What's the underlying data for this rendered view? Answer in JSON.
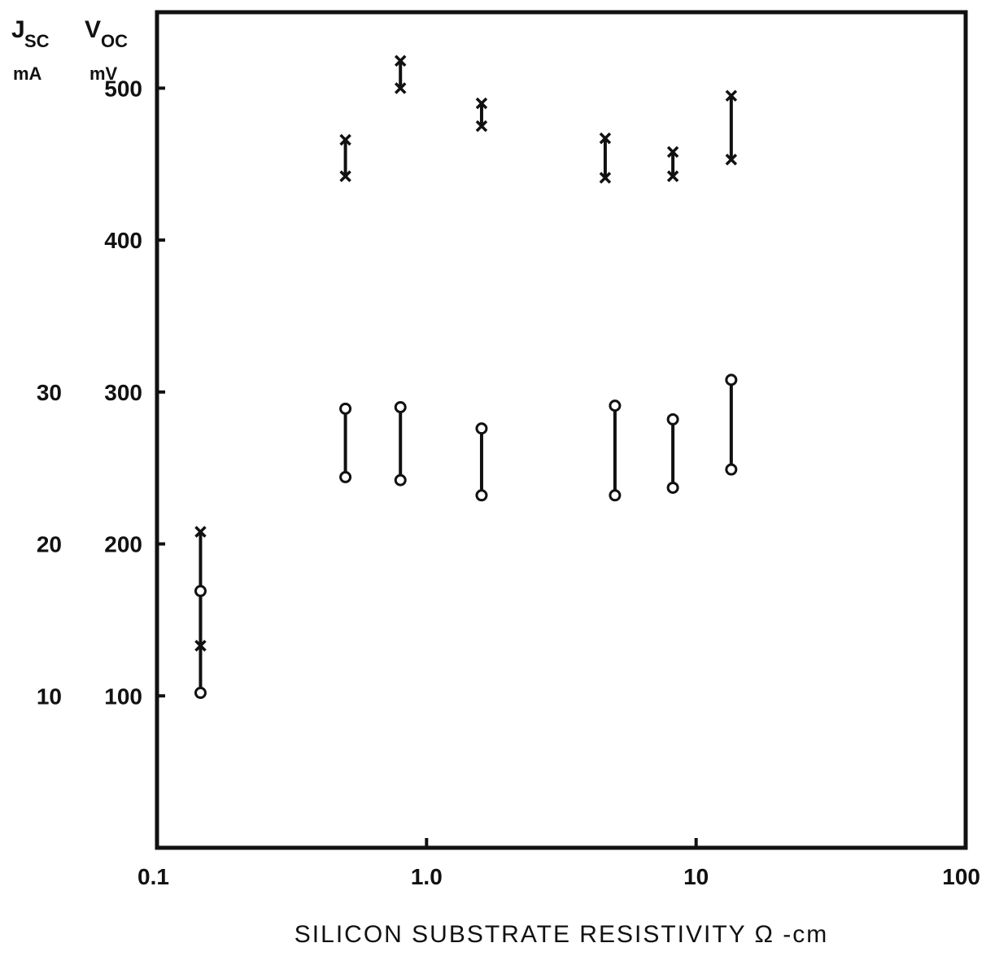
{
  "chart_data": {
    "type": "scatter",
    "x_scale": "log",
    "xlim": [
      0.1,
      100
    ],
    "ylim_voc": [
      0,
      550
    ],
    "ylim_jsc": [
      0,
      55
    ],
    "grid": false,
    "xlabel": "SILICON SUBSTRATE RESISTIVITY Ω -cm",
    "x_ticks": [
      "0.1",
      "1.0",
      "10",
      "100"
    ],
    "y_ticks_voc": [
      "100",
      "200",
      "300",
      "400",
      "500"
    ],
    "y_ticks_jsc": [
      "10",
      "20",
      "30"
    ],
    "axis_headers": {
      "jsc_symbol": "J",
      "jsc_sub": "SC",
      "jsc_unit": "mA",
      "voc_symbol": "V",
      "voc_sub": "OC",
      "voc_unit": "mV"
    },
    "series": [
      {
        "marker": "x",
        "quantity": "Voc (mV)",
        "ranges": [
          {
            "x": 0.145,
            "low": 133,
            "high": 208
          },
          {
            "x": 0.5,
            "low": 442,
            "high": 466
          },
          {
            "x": 0.8,
            "low": 500,
            "high": 518
          },
          {
            "x": 1.6,
            "low": 475,
            "high": 490
          },
          {
            "x": 4.6,
            "low": 441,
            "high": 467
          },
          {
            "x": 8.2,
            "low": 442,
            "high": 458
          },
          {
            "x": 13.5,
            "low": 453,
            "high": 495
          }
        ]
      },
      {
        "marker": "o",
        "quantity": "Jsc (mA)",
        "ranges": [
          {
            "x": 0.145,
            "low": 10.2,
            "high": 16.9
          },
          {
            "x": 0.5,
            "low": 24.4,
            "high": 28.9
          },
          {
            "x": 0.8,
            "low": 24.2,
            "high": 29.0
          },
          {
            "x": 1.6,
            "low": 23.2,
            "high": 27.6
          },
          {
            "x": 5.0,
            "low": 23.2,
            "high": 29.1
          },
          {
            "x": 8.2,
            "low": 23.7,
            "high": 28.2
          },
          {
            "x": 13.5,
            "low": 24.9,
            "high": 30.8
          }
        ]
      }
    ]
  }
}
